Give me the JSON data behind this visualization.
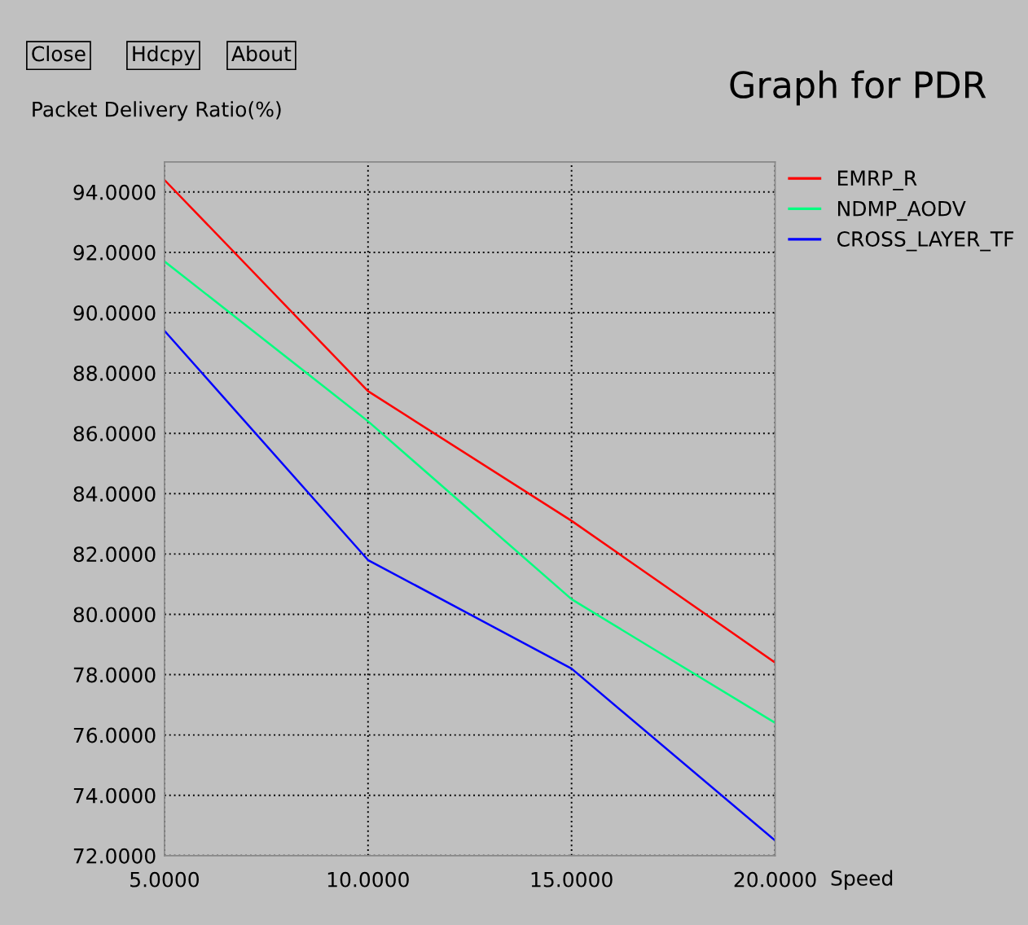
{
  "chart_data": {
    "type": "line",
    "title": "Graph for PDR",
    "ylabel": "Packet Delivery Ratio(%)",
    "xlabel": "Speed",
    "annotations": [
      "Close",
      "Hdcpy",
      "About"
    ],
    "x": [
      5,
      10,
      15,
      20
    ],
    "series": [
      {
        "name": "EMRP_R",
        "color": "#ff0000",
        "values": [
          94.4,
          87.4,
          83.1,
          78.4
        ]
      },
      {
        "name": "NDMP_AODV",
        "color": "#00ff7f",
        "values": [
          91.7,
          86.4,
          80.5,
          76.4
        ]
      },
      {
        "name": "CROSS_LAYER_TF",
        "color": "#0000ff",
        "values": [
          89.4,
          81.8,
          78.2,
          72.5
        ]
      }
    ],
    "xlim": [
      5,
      20
    ],
    "ylim": [
      72,
      95
    ],
    "xticks": [
      {
        "value": 5,
        "label": "5.0000"
      },
      {
        "value": 10,
        "label": "10.0000"
      },
      {
        "value": 15,
        "label": "15.0000"
      },
      {
        "value": 20,
        "label": "20.0000"
      }
    ],
    "yticks": [
      {
        "value": 72,
        "label": "72.0000"
      },
      {
        "value": 74,
        "label": "74.0000"
      },
      {
        "value": 76,
        "label": "76.0000"
      },
      {
        "value": 78,
        "label": "78.0000"
      },
      {
        "value": 80,
        "label": "80.0000"
      },
      {
        "value": 82,
        "label": "82.0000"
      },
      {
        "value": 84,
        "label": "84.0000"
      },
      {
        "value": 86,
        "label": "86.0000"
      },
      {
        "value": 88,
        "label": "88.0000"
      },
      {
        "value": 90,
        "label": "90.0000"
      },
      {
        "value": 92,
        "label": "92.0000"
      },
      {
        "value": 94,
        "label": "94.0000"
      }
    ],
    "grid": true,
    "legend": "top right",
    "line_style": "solid",
    "marker": "none"
  }
}
